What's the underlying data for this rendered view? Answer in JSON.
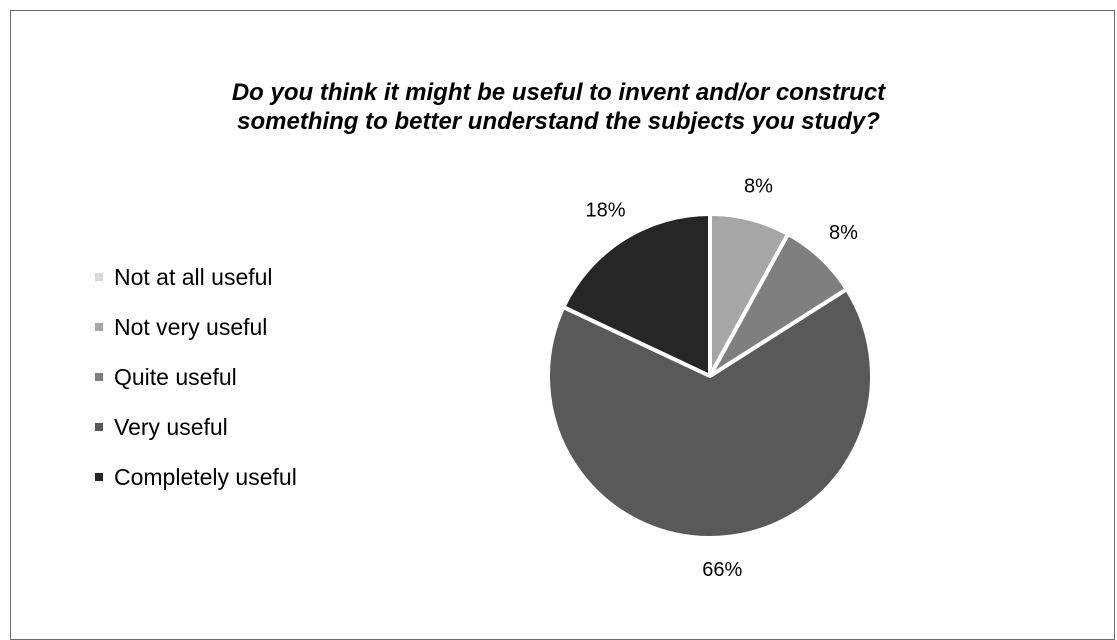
{
  "chart_data": {
    "type": "pie",
    "title": [
      "Do you think it might be useful to invent and/or construct",
      "something to better understand the subjects you study?"
    ],
    "categories": [
      "Not at all useful",
      "Not very useful",
      "Quite useful",
      "Very useful",
      "Completely useful"
    ],
    "values": [
      0,
      8,
      8,
      66,
      18
    ],
    "data_labels": [
      "",
      "8%",
      "8%",
      "66%",
      "18%"
    ],
    "colors": [
      "#d9d9d9",
      "#a6a6a6",
      "#7f7f7f",
      "#595959",
      "#262626"
    ],
    "legend_position": "left",
    "start_angle": "12 o'clock, clockwise"
  }
}
